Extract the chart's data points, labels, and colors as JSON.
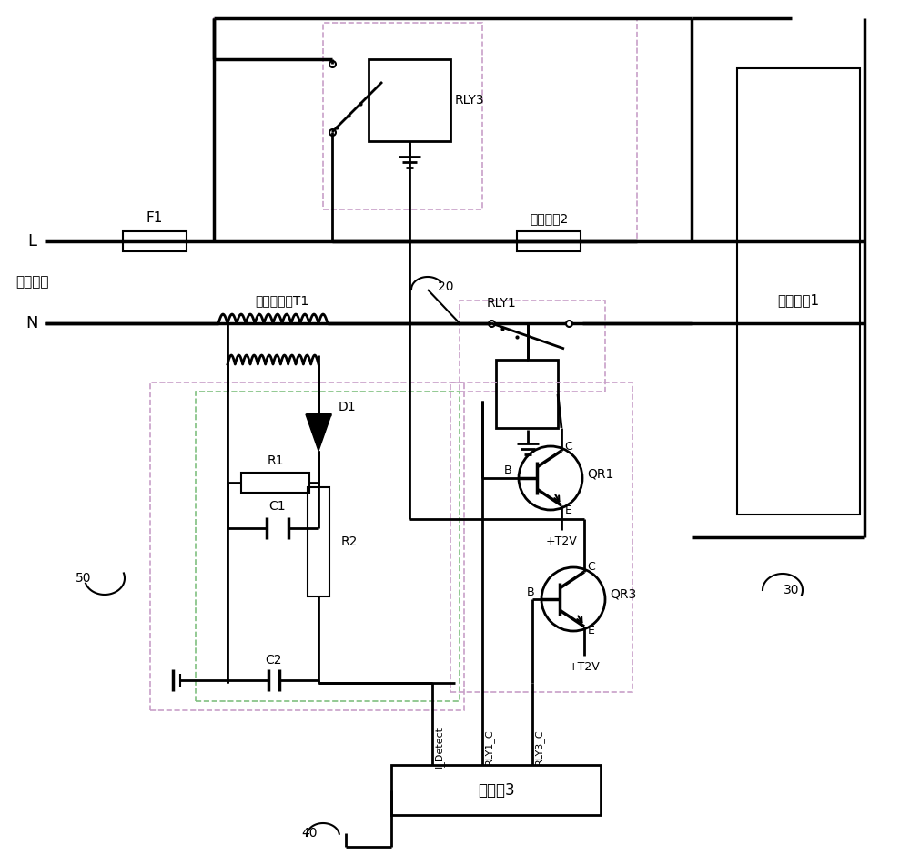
{
  "bg": "#ffffff",
  "lc": "#000000",
  "dc": "#c8a0c8",
  "gc": "#80c080",
  "labels": {
    "L": "L",
    "N": "N",
    "AC": "交流市电",
    "F1": "F1",
    "temp_switch": "温控开关2",
    "RLY3": "RLY3",
    "RLY1": "RLY1",
    "T1": "电流互感器T1",
    "D1": "D1",
    "R1": "R1",
    "C1": "C1",
    "R2": "R2",
    "C2": "C2",
    "QR1": "QR1",
    "QR3": "QR3",
    "heating": "加热装置1",
    "mcu": "单片机3",
    "I_Detect": "I_Detect",
    "RLY1_C": "RLY1_C",
    "RLY3_C": "RLY3_C",
    "T2V": "+T2V",
    "num20": "20",
    "num30": "30",
    "num40": "40",
    "num50": "50"
  }
}
